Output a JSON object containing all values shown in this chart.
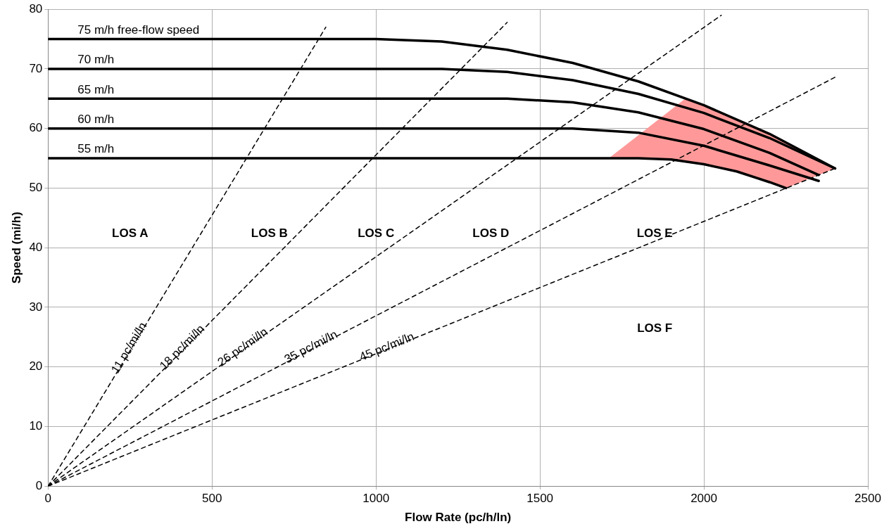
{
  "chart_data": {
    "type": "line",
    "xlabel": "Flow Rate (pc/h/ln)",
    "ylabel": "Speed (mi/h)",
    "xlim": [
      0,
      2500
    ],
    "xticks": [
      0,
      500,
      1000,
      1500,
      2000,
      2500
    ],
    "ylim": [
      0,
      80
    ],
    "yticks": [
      0,
      10,
      20,
      30,
      40,
      50,
      60,
      70,
      80
    ],
    "grid": true,
    "legend": false,
    "marker": "none",
    "series": [
      {
        "type": "area",
        "color": "#ff9999",
        "x": [
          1710,
          1943,
          2000,
          2200,
          2400,
          2250,
          2200,
          2100,
          2000,
          1900,
          1800,
          1710
        ],
        "values": [
          55,
          65,
          63.9,
          59.1,
          53.3,
          50,
          51,
          52.8,
          54,
          54.8,
          55,
          55
        ]
      },
      {
        "name": "75 m/h free-flow speed",
        "line_style": "solid",
        "color": "#000000",
        "x": [
          0,
          1000,
          1200,
          1400,
          1600,
          1800,
          2000,
          2200,
          2400
        ],
        "values": [
          75,
          75,
          74.6,
          73.2,
          71,
          67.9,
          63.9,
          59.1,
          53.3
        ]
      },
      {
        "name": "70 m/h",
        "line_style": "solid",
        "color": "#000000",
        "x": [
          0,
          1200,
          1400,
          1600,
          1800,
          2000,
          2200,
          2400
        ],
        "values": [
          70,
          70,
          69.5,
          68.1,
          65.8,
          62.6,
          58.4,
          53.3
        ]
      },
      {
        "name": "65 m/h",
        "line_style": "solid",
        "color": "#000000",
        "x": [
          0,
          1400,
          1600,
          1800,
          2000,
          2200,
          2350
        ],
        "values": [
          65,
          65,
          64.4,
          62.7,
          59.9,
          55.9,
          52.2
        ]
      },
      {
        "name": "60 m/h",
        "line_style": "solid",
        "color": "#000000",
        "x": [
          0,
          1600,
          1800,
          2000,
          2200,
          2350
        ],
        "values": [
          60,
          60,
          59.3,
          57.1,
          53.8,
          51.2
        ]
      },
      {
        "name": "55 m/h",
        "line_style": "solid",
        "color": "#000000",
        "x": [
          0,
          1800,
          1900,
          2000,
          2100,
          2200,
          2250
        ],
        "values": [
          55,
          55,
          54.8,
          54,
          52.8,
          51,
          50
        ]
      },
      {
        "name": "11 pc/mi/ln",
        "line_style": "dashed",
        "color": "#000000",
        "x": [
          0,
          847
        ],
        "values": [
          0,
          77
        ]
      },
      {
        "name": "18 pc/mi/ln",
        "line_style": "dashed",
        "color": "#000000",
        "x": [
          0,
          1400
        ],
        "values": [
          0,
          77.8
        ]
      },
      {
        "name": "26 pc/mi/ln",
        "line_style": "dashed",
        "color": "#000000",
        "x": [
          0,
          2053
        ],
        "values": [
          0,
          79
        ]
      },
      {
        "name": "35 pc/mi/ln",
        "line_style": "dashed",
        "color": "#000000",
        "x": [
          0,
          2400
        ],
        "values": [
          0,
          68.6
        ]
      },
      {
        "name": "45 pc/mi/ln",
        "line_style": "dashed",
        "color": "#000000",
        "x": [
          0,
          2400
        ],
        "values": [
          0,
          53.3
        ]
      }
    ],
    "annotations": [
      "LOS A",
      "LOS B",
      "LOS C",
      "LOS D",
      "LOS E",
      "LOS F"
    ]
  }
}
